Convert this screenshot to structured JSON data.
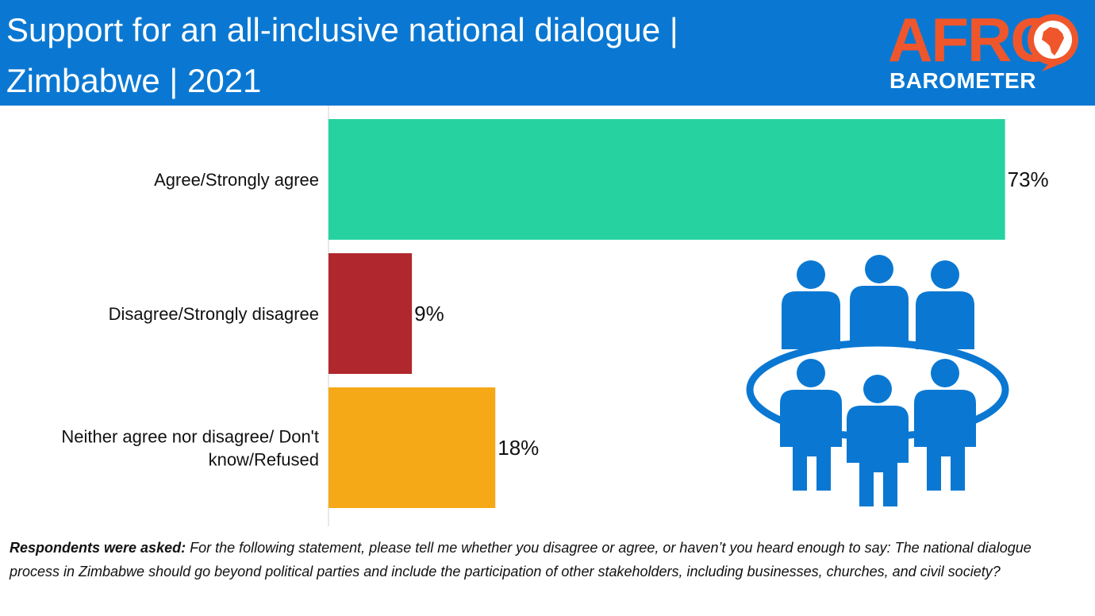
{
  "header": {
    "title_line1": "Support for an all-inclusive national dialogue |",
    "title_line2": "Zimbabwe | 2021",
    "logo_top": "AFRO",
    "logo_bottom": "BAROMETER"
  },
  "chart_data": {
    "type": "bar",
    "orientation": "horizontal",
    "title": "Support for an all-inclusive national dialogue | Zimbabwe | 2021",
    "categories": [
      "Agree/Strongly agree",
      "Disagree/Strongly disagree",
      "Neither agree nor disagree/ Don't know/Refused"
    ],
    "category_lines": [
      [
        "Agree/Strongly agree"
      ],
      [
        "Disagree/Strongly disagree"
      ],
      [
        "Neither agree nor disagree/ Don't",
        "know/Refused"
      ]
    ],
    "values": [
      73,
      9,
      18
    ],
    "value_labels": [
      "73%",
      "9%",
      "18%"
    ],
    "colors": [
      "#26d3a0",
      "#b0272d",
      "#f6a917"
    ],
    "xlim": [
      0,
      100
    ],
    "grid": false,
    "legend": "none"
  },
  "icon": {
    "name": "group-people-icon",
    "color": "#0a78d2"
  },
  "footnote": {
    "lead": "Respondents were asked:",
    "text": " For the following statement, please tell me whether you disagree or agree, or haven’t you heard enough to say: The national dialogue process in Zimbabwe should go beyond political parties and include the participation of other stakeholders, including businesses, churches, and civil society?"
  }
}
